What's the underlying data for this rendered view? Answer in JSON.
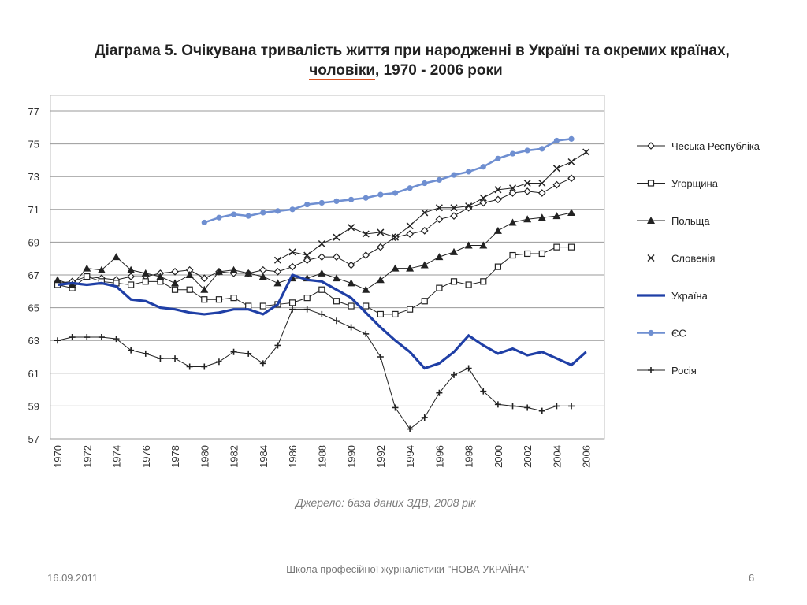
{
  "slide": {
    "title_line1": "Діаграма 5. Очікувана тривалість життя при народженні в Україні та окремих країнах,",
    "title_line2_underlined": "чоловіки",
    "title_line2_rest": ", 1970 - 2006 роки",
    "source": "Джерело: база даних ЗДВ, 2008 рік",
    "footer_date": "16.09.2011",
    "footer_center": "Школа професійної журналістики \"НОВА УКРАЇНА\"",
    "footer_page": "6"
  },
  "chart_data": {
    "type": "line",
    "title": "Діаграма 5. Очікувана тривалість життя при народженні в Україні та окремих країнах, чоловіки, 1970 - 2006 роки",
    "xlabel": "",
    "ylabel": "",
    "xlim": [
      1970,
      2006
    ],
    "ylim": [
      57,
      77
    ],
    "yticks": [
      57,
      59,
      61,
      63,
      65,
      67,
      69,
      71,
      73,
      75,
      77
    ],
    "xticks": [
      1970,
      1972,
      1974,
      1976,
      1978,
      1980,
      1982,
      1984,
      1986,
      1988,
      1990,
      1992,
      1994,
      1996,
      1998,
      2000,
      2002,
      2004,
      2006
    ],
    "grid": "horizontal",
    "legend_position": "right",
    "series": [
      {
        "name": "Чеська Республіка",
        "marker": "diamond-open",
        "color": "#222222",
        "x": [
          1970,
          1971,
          1972,
          1973,
          1974,
          1975,
          1976,
          1977,
          1978,
          1979,
          1980,
          1981,
          1982,
          1983,
          1984,
          1985,
          1986,
          1987,
          1988,
          1989,
          1990,
          1991,
          1992,
          1993,
          1994,
          1995,
          1996,
          1997,
          1998,
          1999,
          2000,
          2001,
          2002,
          2003,
          2004,
          2005
        ],
        "values": [
          66.5,
          66.6,
          66.9,
          66.8,
          66.7,
          66.9,
          66.9,
          67.1,
          67.2,
          67.3,
          66.8,
          67.2,
          67.1,
          67.1,
          67.3,
          67.2,
          67.5,
          67.9,
          68.1,
          68.1,
          67.6,
          68.2,
          68.7,
          69.3,
          69.5,
          69.7,
          70.4,
          70.6,
          71.1,
          71.4,
          71.6,
          72.0,
          72.1,
          72.0,
          72.5,
          72.9
        ]
      },
      {
        "name": "Угорщина",
        "marker": "square-open",
        "color": "#222222",
        "x": [
          1970,
          1971,
          1972,
          1973,
          1974,
          1975,
          1976,
          1977,
          1978,
          1979,
          1980,
          1981,
          1982,
          1983,
          1984,
          1985,
          1986,
          1987,
          1988,
          1989,
          1990,
          1991,
          1992,
          1993,
          1994,
          1995,
          1996,
          1997,
          1998,
          1999,
          2000,
          2001,
          2002,
          2003,
          2004,
          2005
        ],
        "values": [
          66.4,
          66.2,
          66.9,
          66.6,
          66.5,
          66.4,
          66.6,
          66.6,
          66.1,
          66.1,
          65.5,
          65.5,
          65.6,
          65.1,
          65.1,
          65.2,
          65.3,
          65.6,
          66.1,
          65.4,
          65.1,
          65.1,
          64.6,
          64.6,
          64.9,
          65.4,
          66.2,
          66.6,
          66.4,
          66.6,
          67.5,
          68.2,
          68.3,
          68.3,
          68.7,
          68.7
        ]
      },
      {
        "name": "Польща",
        "marker": "triangle-filled",
        "color": "#222222",
        "x": [
          1970,
          1971,
          1972,
          1973,
          1974,
          1975,
          1976,
          1977,
          1978,
          1979,
          1980,
          1981,
          1982,
          1983,
          1984,
          1985,
          1986,
          1987,
          1988,
          1989,
          1990,
          1991,
          1992,
          1993,
          1994,
          1995,
          1996,
          1997,
          1998,
          1999,
          2000,
          2001,
          2002,
          2003,
          2004,
          2005
        ],
        "values": [
          66.7,
          66.4,
          67.4,
          67.3,
          68.1,
          67.3,
          67.1,
          66.9,
          66.5,
          67.0,
          66.1,
          67.2,
          67.3,
          67.1,
          66.9,
          66.5,
          66.8,
          66.8,
          67.1,
          66.8,
          66.5,
          66.1,
          66.7,
          67.4,
          67.4,
          67.6,
          68.1,
          68.4,
          68.8,
          68.8,
          69.7,
          70.2,
          70.4,
          70.5,
          70.6,
          70.8
        ]
      },
      {
        "name": "Словенія",
        "marker": "x",
        "color": "#222222",
        "x": [
          1985,
          1986,
          1987,
          1988,
          1989,
          1990,
          1991,
          1992,
          1993,
          1994,
          1995,
          1996,
          1997,
          1998,
          1999,
          2000,
          2001,
          2002,
          2003,
          2004,
          2005,
          2006
        ],
        "values": [
          67.9,
          68.4,
          68.2,
          68.9,
          69.3,
          69.9,
          69.5,
          69.6,
          69.3,
          70.0,
          70.8,
          71.1,
          71.1,
          71.2,
          71.7,
          72.2,
          72.3,
          72.6,
          72.6,
          73.5,
          73.9,
          74.5
        ]
      },
      {
        "name": "Україна",
        "marker": "none",
        "color": "#1f3fa6",
        "x": [
          1970,
          1971,
          1972,
          1973,
          1974,
          1975,
          1976,
          1977,
          1978,
          1979,
          1980,
          1981,
          1982,
          1983,
          1984,
          1985,
          1986,
          1987,
          1988,
          1989,
          1990,
          1991,
          1992,
          1993,
          1994,
          1995,
          1996,
          1997,
          1998,
          1999,
          2000,
          2001,
          2002,
          2003,
          2004,
          2005,
          2006
        ],
        "values": [
          66.4,
          66.5,
          66.4,
          66.5,
          66.3,
          65.5,
          65.4,
          65.0,
          64.9,
          64.7,
          64.6,
          64.7,
          64.9,
          64.9,
          64.6,
          65.2,
          67.0,
          66.7,
          66.6,
          66.1,
          65.6,
          64.7,
          63.8,
          63.0,
          62.3,
          61.3,
          61.6,
          62.3,
          63.3,
          62.7,
          62.2,
          62.5,
          62.1,
          62.3,
          61.9,
          61.5,
          62.3
        ]
      },
      {
        "name": "ЄС",
        "marker": "circle-filled",
        "color": "#6f8fd1",
        "x": [
          1980,
          1981,
          1982,
          1983,
          1984,
          1985,
          1986,
          1987,
          1988,
          1989,
          1990,
          1991,
          1992,
          1993,
          1994,
          1995,
          1996,
          1997,
          1998,
          1999,
          2000,
          2001,
          2002,
          2003,
          2004,
          2005
        ],
        "values": [
          70.2,
          70.5,
          70.7,
          70.6,
          70.8,
          70.9,
          71.0,
          71.3,
          71.4,
          71.5,
          71.6,
          71.7,
          71.9,
          72.0,
          72.3,
          72.6,
          72.8,
          73.1,
          73.3,
          73.6,
          74.1,
          74.4,
          74.6,
          74.7,
          75.2,
          75.3
        ]
      },
      {
        "name": "Росія",
        "marker": "plus",
        "color": "#222222",
        "x": [
          1970,
          1971,
          1972,
          1973,
          1974,
          1975,
          1976,
          1977,
          1978,
          1979,
          1980,
          1981,
          1982,
          1983,
          1984,
          1985,
          1986,
          1987,
          1988,
          1989,
          1990,
          1991,
          1992,
          1993,
          1994,
          1995,
          1996,
          1997,
          1998,
          1999,
          2000,
          2001,
          2002,
          2003,
          2004,
          2005
        ],
        "values": [
          63.0,
          63.2,
          63.2,
          63.2,
          63.1,
          62.4,
          62.2,
          61.9,
          61.9,
          61.4,
          61.4,
          61.7,
          62.3,
          62.2,
          61.6,
          62.7,
          64.9,
          64.9,
          64.6,
          64.2,
          63.8,
          63.4,
          62.0,
          58.9,
          57.6,
          58.3,
          59.8,
          60.9,
          61.3,
          59.9,
          59.1,
          59.0,
          58.9,
          58.7,
          59.0,
          59.0
        ]
      }
    ]
  }
}
